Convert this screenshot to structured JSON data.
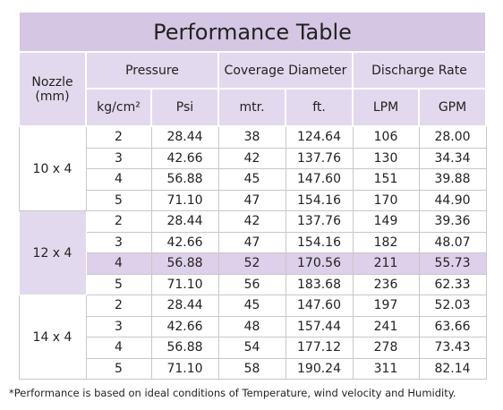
{
  "title": "Performance Table",
  "headers": {
    "nozzle": "Nozzle (mm)",
    "pressure": "Pressure",
    "coverage": "Coverage Diameter",
    "discharge": "Discharge Rate",
    "units": [
      "kg/cm²",
      "Psi",
      "mtr.",
      "ft.",
      "LPM",
      "GPM"
    ]
  },
  "groups": [
    {
      "nozzle": "10 x 4",
      "rows": [
        [
          "2",
          "28.44",
          "38",
          "124.64",
          "106",
          "28.00"
        ],
        [
          "3",
          "42.66",
          "42",
          "137.76",
          "130",
          "34.34"
        ],
        [
          "4",
          "56.88",
          "45",
          "147.60",
          "151",
          "39.88"
        ],
        [
          "5",
          "71.10",
          "47",
          "154.16",
          "170",
          "44.90"
        ]
      ]
    },
    {
      "nozzle": "12 x 4",
      "rows": [
        [
          "2",
          "28.44",
          "42",
          "137.76",
          "149",
          "39.36"
        ],
        [
          "3",
          "42.66",
          "47",
          "154.16",
          "182",
          "48.07"
        ],
        [
          "4",
          "56.88",
          "52",
          "170.56",
          "211",
          "55.73"
        ],
        [
          "5",
          "71.10",
          "56",
          "183.68",
          "236",
          "62.33"
        ]
      ]
    },
    {
      "nozzle": "14 x 4",
      "rows": [
        [
          "2",
          "28.44",
          "45",
          "147.60",
          "197",
          "52.03"
        ],
        [
          "3",
          "42.66",
          "48",
          "157.44",
          "241",
          "63.66"
        ],
        [
          "4",
          "56.88",
          "54",
          "177.12",
          "278",
          "73.43"
        ],
        [
          "5",
          "71.10",
          "58",
          "190.24",
          "311",
          "82.14"
        ]
      ]
    }
  ],
  "footnote": "*Performance is based on ideal conditions of Temperature, wind velocity and Humidity."
}
